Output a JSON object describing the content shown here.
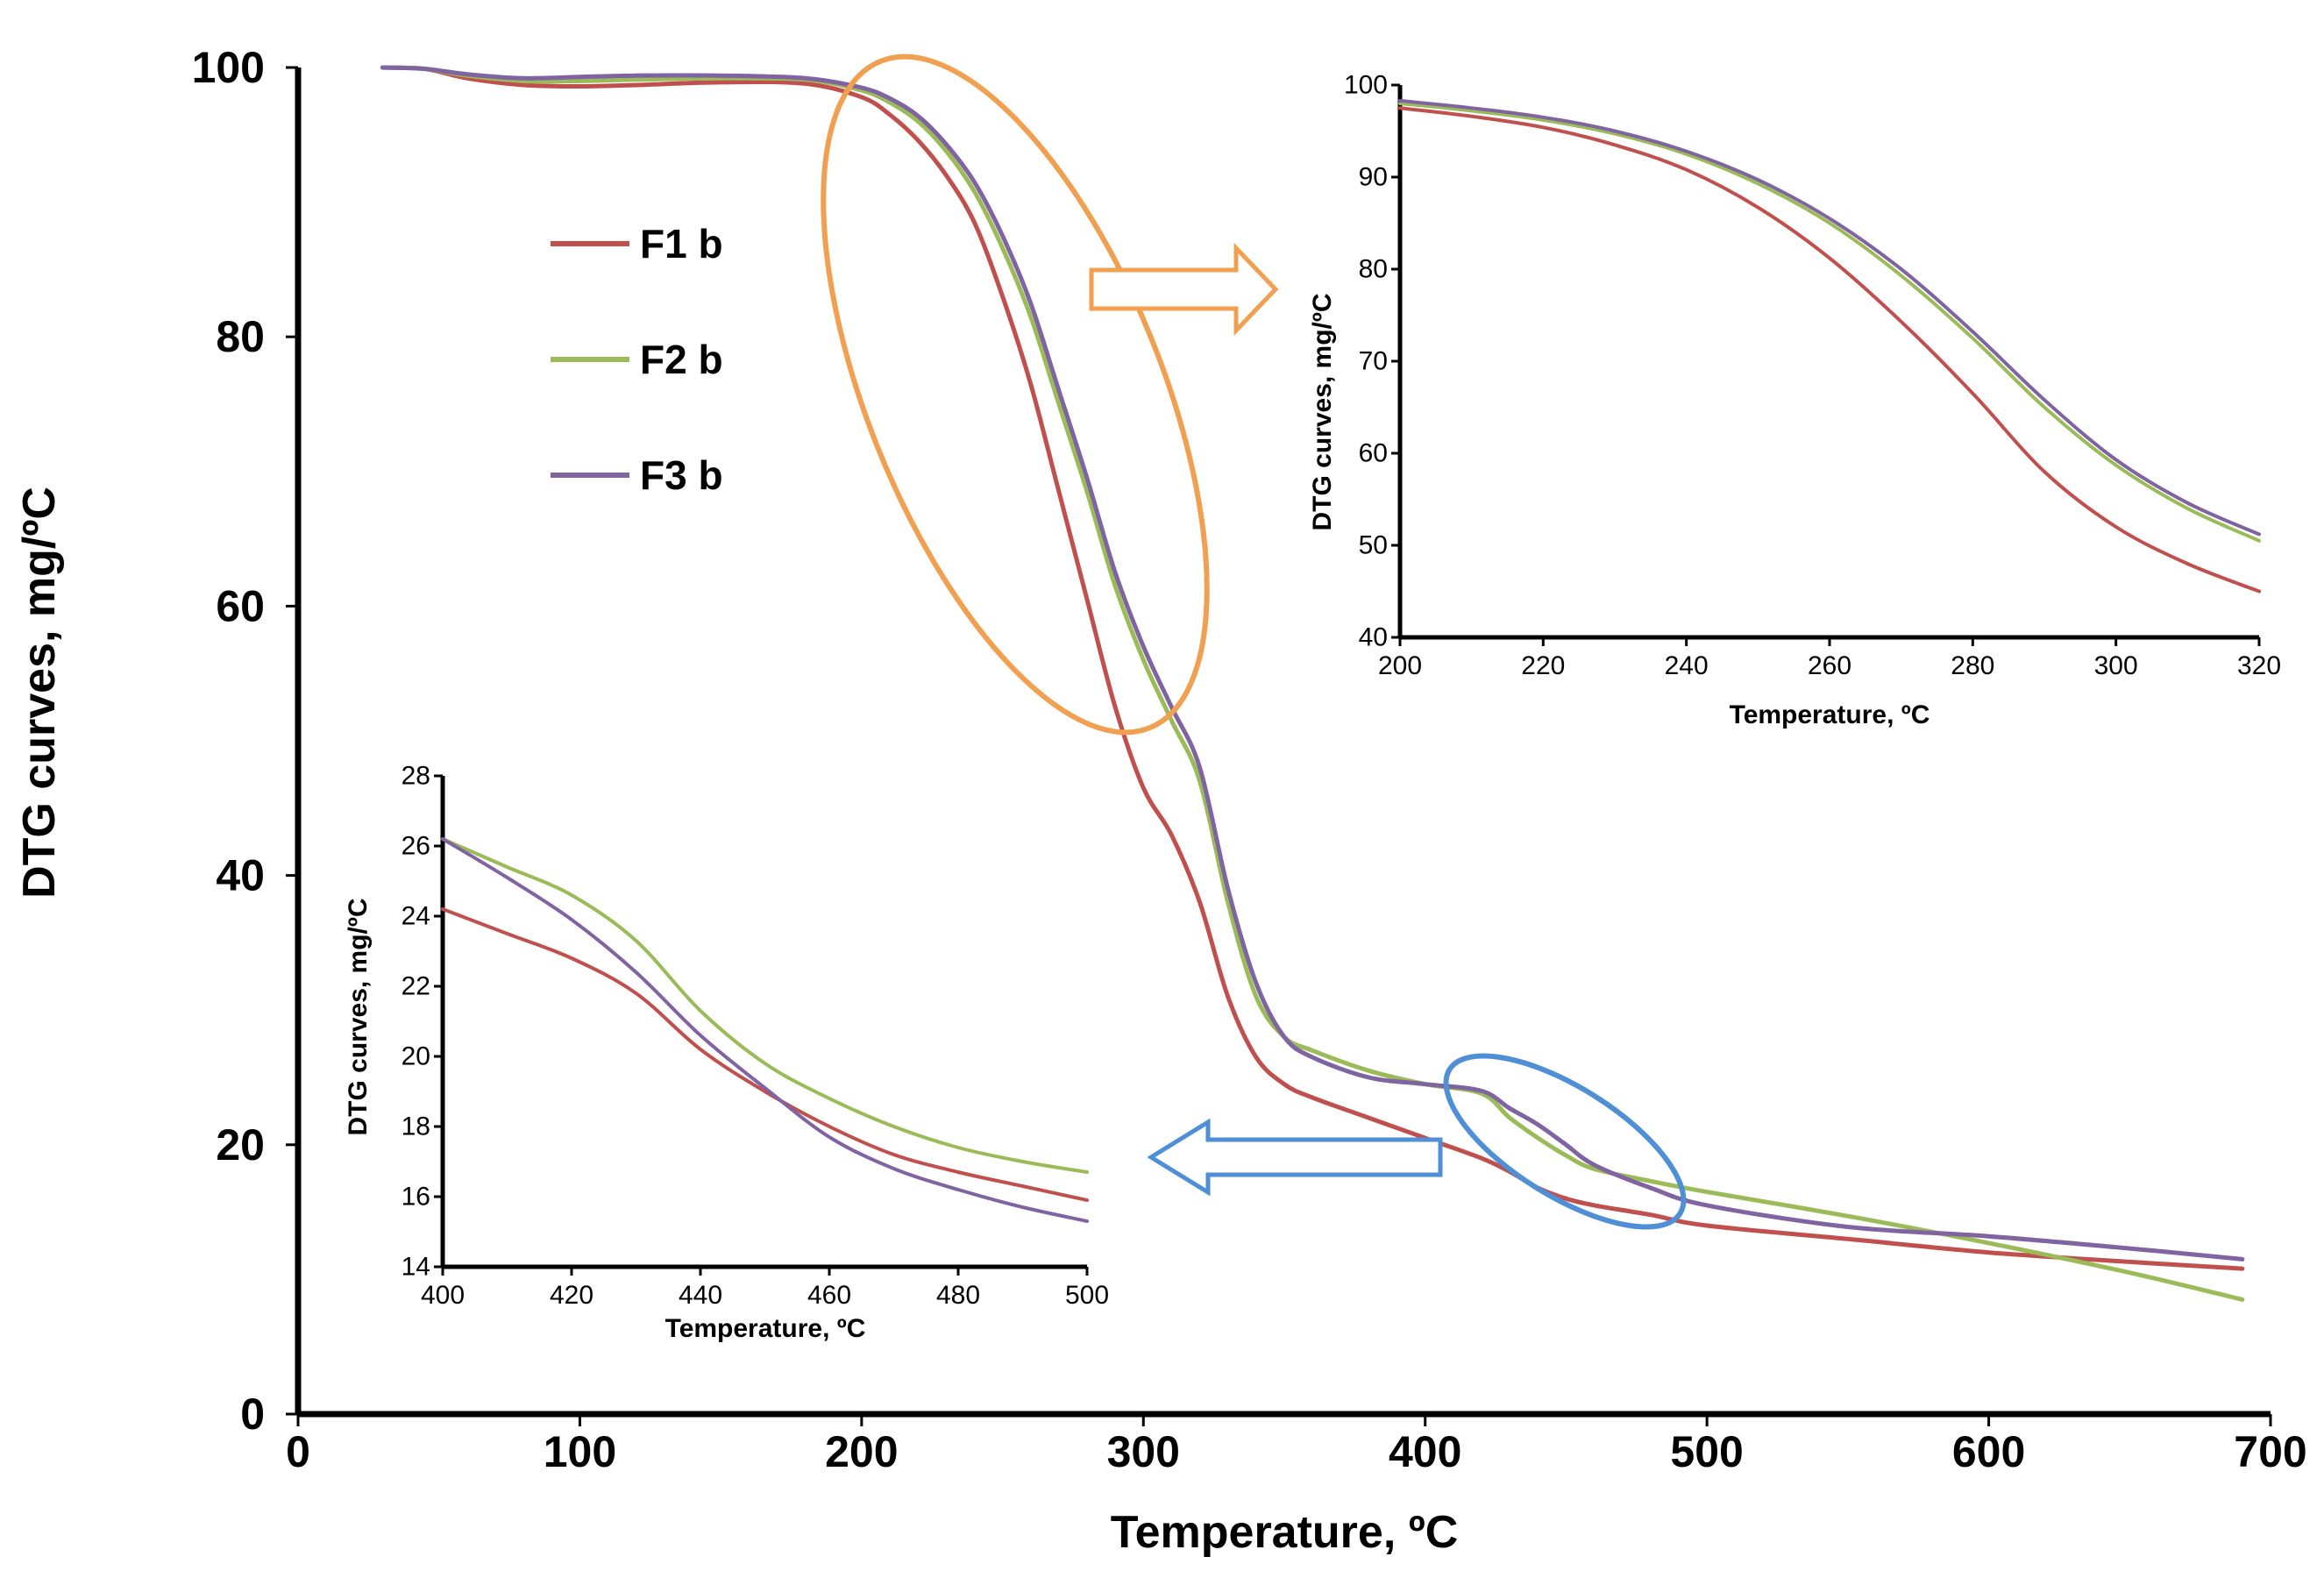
{
  "chart_data": [
    {
      "type": "line",
      "role": "main",
      "title": "",
      "xlabel": "Temperature, ºC",
      "ylabel": "DTG curves, mg/ºC",
      "xlim": [
        0,
        700
      ],
      "ylim": [
        0,
        100
      ],
      "xticks": [
        "0",
        "100",
        "200",
        "300",
        "400",
        "500",
        "600",
        "700"
      ],
      "yticks": [
        "0",
        "20",
        "40",
        "60",
        "80",
        "100"
      ],
      "legend_position": "upper-left",
      "series": [
        {
          "name": "F1 b",
          "color": "#c0504d",
          "x": [
            30,
            45,
            60,
            80,
            100,
            120,
            150,
            180,
            200,
            210,
            220,
            230,
            240,
            250,
            260,
            270,
            280,
            290,
            300,
            310,
            320,
            330,
            340,
            350,
            360,
            380,
            400,
            420,
            430,
            440,
            450,
            460,
            480,
            500,
            550,
            600,
            650,
            690
          ],
          "y": [
            100,
            99.9,
            99.2,
            98.7,
            98.6,
            98.7,
            98.9,
            98.8,
            97.8,
            96.5,
            94.6,
            92,
            88.5,
            83,
            76.5,
            68.5,
            60.5,
            52.5,
            46.5,
            43,
            38,
            31,
            26.5,
            24.5,
            23.5,
            22,
            20.5,
            19,
            18,
            16.8,
            16,
            15.5,
            14.8,
            14,
            13,
            12,
            11.3,
            10.8
          ]
        },
        {
          "name": "F2 b",
          "color": "#9bbb59",
          "x": [
            30,
            45,
            60,
            80,
            100,
            120,
            150,
            180,
            200,
            210,
            220,
            230,
            240,
            250,
            260,
            270,
            280,
            290,
            300,
            310,
            320,
            330,
            340,
            350,
            360,
            380,
            400,
            420,
            430,
            440,
            450,
            460,
            480,
            500,
            550,
            600,
            650,
            690
          ],
          "y": [
            100,
            99.9,
            99.4,
            99,
            99,
            99.1,
            99.2,
            99.1,
            98.3,
            97.4,
            96,
            93.8,
            90.8,
            86.6,
            81.5,
            75,
            68.5,
            61.5,
            56,
            51.5,
            47,
            38,
            31,
            28,
            27,
            25.5,
            24.5,
            23.8,
            22,
            20.5,
            19.2,
            18.2,
            17.3,
            16.5,
            14.7,
            12.7,
            10.5,
            8.5
          ]
        },
        {
          "name": "F3 b",
          "color": "#8064a2",
          "x": [
            30,
            45,
            60,
            80,
            100,
            120,
            150,
            180,
            200,
            210,
            220,
            230,
            240,
            250,
            260,
            270,
            280,
            290,
            300,
            310,
            320,
            330,
            340,
            350,
            360,
            380,
            400,
            420,
            430,
            440,
            450,
            460,
            480,
            500,
            550,
            600,
            650,
            690
          ],
          "y": [
            100,
            99.9,
            99.5,
            99.2,
            99.3,
            99.4,
            99.4,
            99.2,
            98.5,
            97.7,
            96.4,
            94.3,
            91.5,
            87.5,
            82.5,
            76,
            69.5,
            62.5,
            57,
            52.5,
            48,
            39,
            32,
            28,
            26.5,
            25,
            24.5,
            24,
            22.7,
            21.5,
            20,
            18.5,
            16.8,
            15.5,
            13.9,
            13.2,
            12.3,
            11.5
          ]
        }
      ]
    },
    {
      "type": "line",
      "role": "inset-upper-right",
      "title": "",
      "xlabel": "Temperature, ºC",
      "ylabel": "DTG curves, mg/ºC",
      "xlim": [
        200,
        320
      ],
      "ylim": [
        40,
        100
      ],
      "xticks": [
        "200",
        "220",
        "240",
        "260",
        "280",
        "300",
        "320"
      ],
      "yticks": [
        "40",
        "50",
        "60",
        "70",
        "80",
        "90",
        "100"
      ],
      "series": [
        {
          "name": "F1 b",
          "color": "#c0504d",
          "x": [
            200,
            210,
            220,
            230,
            240,
            250,
            260,
            270,
            280,
            290,
            300,
            310,
            320
          ],
          "y": [
            97.5,
            96.6,
            95.4,
            93.5,
            90.8,
            86.7,
            81.2,
            74.3,
            66.5,
            58,
            52,
            48,
            45
          ]
        },
        {
          "name": "F2 b",
          "color": "#9bbb59",
          "x": [
            200,
            210,
            220,
            230,
            240,
            250,
            260,
            270,
            280,
            290,
            300,
            310,
            320
          ],
          "y": [
            98,
            97.2,
            96.2,
            94.7,
            92.5,
            89.3,
            85,
            79.3,
            72.5,
            65,
            58.7,
            54,
            50.5
          ]
        },
        {
          "name": "F3 b",
          "color": "#8064a2",
          "x": [
            200,
            210,
            220,
            230,
            240,
            250,
            260,
            270,
            280,
            290,
            300,
            310,
            320
          ],
          "y": [
            98.3,
            97.5,
            96.5,
            95,
            92.8,
            89.7,
            85.5,
            80,
            73.2,
            65.8,
            59.3,
            54.6,
            51.2
          ]
        }
      ]
    },
    {
      "type": "line",
      "role": "inset-lower-left",
      "title": "",
      "xlabel": "Temperature, ºC",
      "ylabel": "DTG curves, mg/ºC",
      "xlim": [
        400,
        500
      ],
      "ylim": [
        14,
        28
      ],
      "xticks": [
        "400",
        "420",
        "440",
        "460",
        "480",
        "500"
      ],
      "yticks": [
        "14",
        "16",
        "18",
        "20",
        "22",
        "24",
        "26",
        "28"
      ],
      "series": [
        {
          "name": "F1 b",
          "color": "#c0504d",
          "x": [
            400,
            410,
            420,
            430,
            440,
            450,
            460,
            470,
            480,
            490,
            500
          ],
          "y": [
            24.2,
            23.5,
            22.8,
            21.8,
            20.2,
            19,
            18,
            17.2,
            16.7,
            16.3,
            15.9
          ]
        },
        {
          "name": "F2 b",
          "color": "#9bbb59",
          "x": [
            400,
            410,
            420,
            430,
            440,
            450,
            460,
            470,
            480,
            490,
            500
          ],
          "y": [
            26.2,
            25.4,
            24.6,
            23.3,
            21.3,
            19.8,
            18.8,
            18,
            17.4,
            17,
            16.7
          ]
        },
        {
          "name": "F3 b",
          "color": "#8064a2",
          "x": [
            400,
            410,
            420,
            430,
            440,
            450,
            460,
            470,
            480,
            490,
            500
          ],
          "y": [
            26.2,
            25.1,
            23.9,
            22.4,
            20.6,
            19.1,
            17.7,
            16.8,
            16.2,
            15.7,
            15.3
          ]
        }
      ]
    }
  ]
}
